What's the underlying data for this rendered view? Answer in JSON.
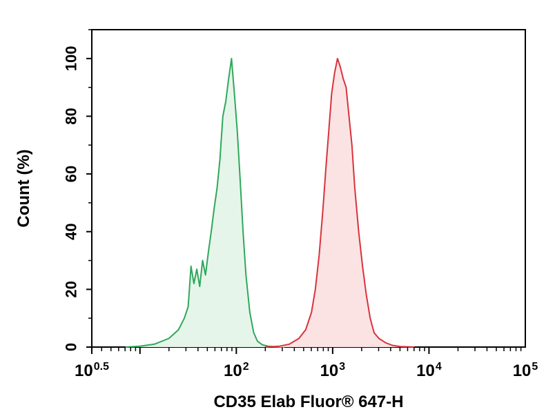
{
  "chart_data": {
    "type": "area",
    "xlabel": "CD35 Elab Fluor® 647-H",
    "ylabel": "Count (%)",
    "x_scale": "log10",
    "xlim": [
      0.5,
      5
    ],
    "ylim": [
      0,
      110
    ],
    "x_ticks": [
      {
        "base": "10",
        "exp": "0.5",
        "value": 0.5
      },
      {
        "base": "10",
        "exp": "2",
        "value": 2
      },
      {
        "base": "10",
        "exp": "3",
        "value": 3
      },
      {
        "base": "10",
        "exp": "4",
        "value": 4
      },
      {
        "base": "10",
        "exp": "5",
        "value": 5
      }
    ],
    "y_ticks": [
      "0",
      "20",
      "40",
      "60",
      "80",
      "100"
    ],
    "grid": false,
    "legend": false,
    "series": [
      {
        "color": "#2ea85a",
        "fill": "#e6f5ea",
        "x": [
          0.85,
          1.0,
          1.15,
          1.3,
          1.4,
          1.46,
          1.5,
          1.53,
          1.56,
          1.59,
          1.62,
          1.65,
          1.68,
          1.71,
          1.74,
          1.77,
          1.8,
          1.83,
          1.86,
          1.89,
          1.92,
          1.95,
          1.98,
          2.01,
          2.04,
          2.07,
          2.1,
          2.14,
          2.18,
          2.22,
          2.27,
          2.33,
          2.4,
          2.5
        ],
        "y": [
          0,
          0.3,
          1,
          3,
          6,
          10,
          14,
          28,
          22,
          27,
          21,
          30,
          25,
          33,
          40,
          48,
          55,
          65,
          80,
          85,
          93,
          100,
          88,
          75,
          58,
          40,
          25,
          12,
          5,
          2,
          0.8,
          0.3,
          0.1,
          0
        ]
      },
      {
        "color": "#d9323a",
        "fill": "#fbe3e4",
        "x": [
          2.3,
          2.45,
          2.55,
          2.65,
          2.72,
          2.78,
          2.82,
          2.86,
          2.9,
          2.93,
          2.96,
          2.99,
          3.02,
          3.05,
          3.08,
          3.11,
          3.14,
          3.17,
          3.2,
          3.23,
          3.27,
          3.31,
          3.35,
          3.39,
          3.43,
          3.48,
          3.55,
          3.62,
          3.7,
          3.85
        ],
        "y": [
          0,
          0.3,
          1,
          3,
          6,
          12,
          20,
          32,
          48,
          62,
          75,
          88,
          95,
          100,
          97,
          93,
          90,
          80,
          70,
          55,
          40,
          28,
          18,
          10,
          5,
          3,
          1.5,
          0.6,
          0.2,
          0
        ]
      }
    ]
  }
}
